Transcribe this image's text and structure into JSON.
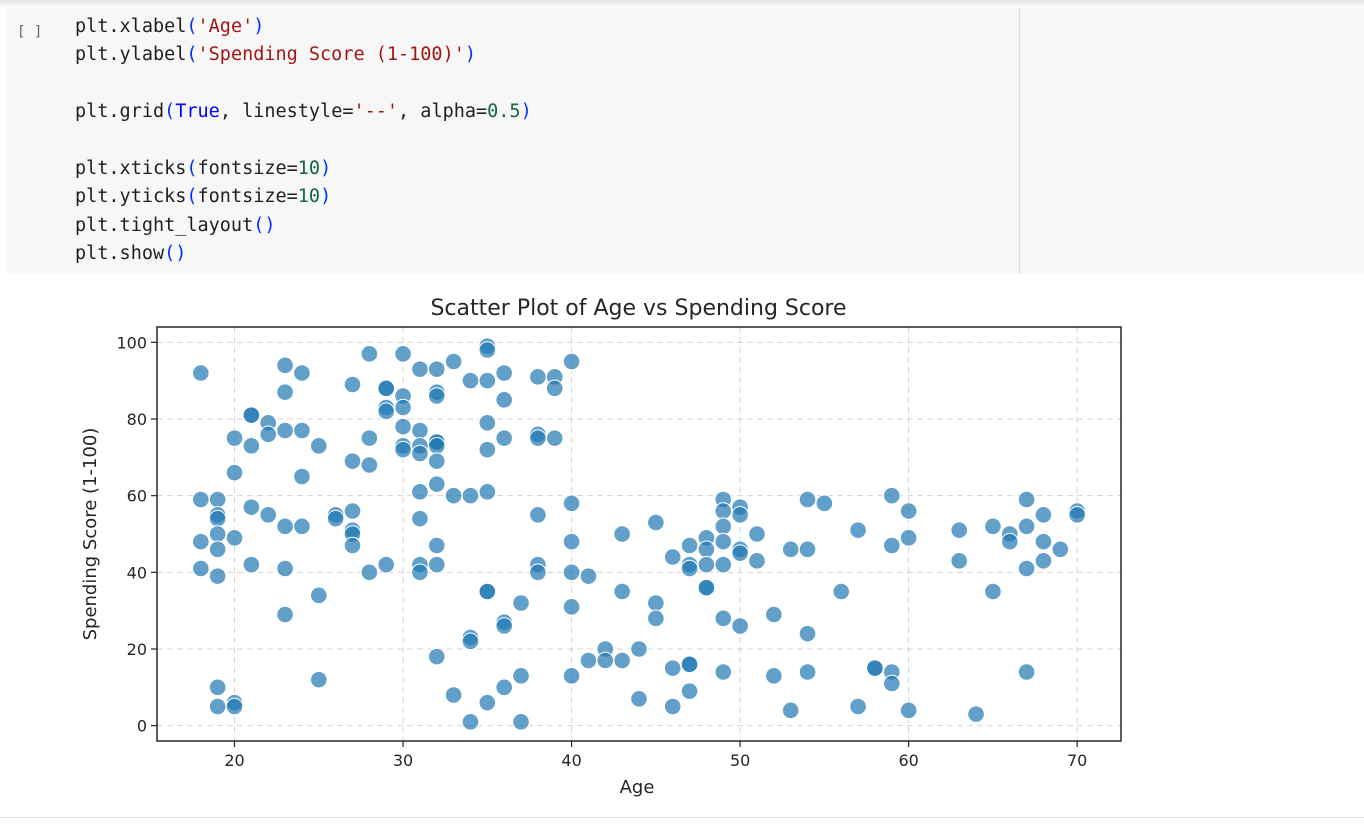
{
  "notebook": {
    "run_indicator": "[ ]",
    "code_lines": [
      [
        {
          "t": "plt.xlabel"
        },
        {
          "t": "(",
          "c": "paren"
        },
        {
          "t": "'Age'",
          "c": "str"
        },
        {
          "t": ")",
          "c": "paren"
        }
      ],
      [
        {
          "t": "plt.ylabel"
        },
        {
          "t": "(",
          "c": "paren"
        },
        {
          "t": "'Spending Score (1-100)'",
          "c": "str"
        },
        {
          "t": ")",
          "c": "paren"
        }
      ],
      [],
      [
        {
          "t": "plt.grid"
        },
        {
          "t": "(",
          "c": "paren"
        },
        {
          "t": "True",
          "c": "kw"
        },
        {
          "t": ", linestyle="
        },
        {
          "t": "'--'",
          "c": "str"
        },
        {
          "t": ", alpha="
        },
        {
          "t": "0.5",
          "c": "num"
        },
        {
          "t": ")",
          "c": "paren"
        }
      ],
      [],
      [
        {
          "t": "plt.xticks"
        },
        {
          "t": "(",
          "c": "paren"
        },
        {
          "t": "fontsize="
        },
        {
          "t": "10",
          "c": "num"
        },
        {
          "t": ")",
          "c": "paren"
        }
      ],
      [
        {
          "t": "plt.yticks"
        },
        {
          "t": "(",
          "c": "paren"
        },
        {
          "t": "fontsize="
        },
        {
          "t": "10",
          "c": "num"
        },
        {
          "t": ")",
          "c": "paren"
        }
      ],
      [
        {
          "t": "plt.tight_layout"
        },
        {
          "t": "()",
          "c": "paren"
        }
      ],
      [
        {
          "t": "plt.show"
        },
        {
          "t": "()",
          "c": "paren"
        }
      ]
    ]
  },
  "colors": {
    "marker": "#1f77b4",
    "marker_edge": "#ffffff",
    "grid": "#b0b0b0",
    "axis": "#262626"
  },
  "chart_data": {
    "type": "scatter",
    "title": "Scatter Plot of Age vs Spending Score",
    "xlabel": "Age",
    "ylabel": "Spending Score (1-100)",
    "xlim": [
      15.4,
      72.6
    ],
    "ylim": [
      -4,
      104
    ],
    "xticks": [
      20,
      30,
      40,
      50,
      60,
      70
    ],
    "yticks": [
      0,
      20,
      40,
      60,
      80,
      100
    ],
    "grid": true,
    "marker_alpha": 0.7,
    "points": [
      [
        18,
        92
      ],
      [
        18,
        59
      ],
      [
        18,
        48
      ],
      [
        18,
        41
      ],
      [
        19,
        59
      ],
      [
        19,
        55
      ],
      [
        19,
        54
      ],
      [
        19,
        50
      ],
      [
        19,
        46
      ],
      [
        19,
        39
      ],
      [
        19,
        10
      ],
      [
        19,
        5
      ],
      [
        20,
        75
      ],
      [
        20,
        66
      ],
      [
        20,
        49
      ],
      [
        20,
        6
      ],
      [
        20,
        5
      ],
      [
        21,
        81
      ],
      [
        21,
        81
      ],
      [
        21,
        73
      ],
      [
        21,
        57
      ],
      [
        21,
        42
      ],
      [
        22,
        79
      ],
      [
        22,
        76
      ],
      [
        22,
        55
      ],
      [
        23,
        94
      ],
      [
        23,
        87
      ],
      [
        23,
        77
      ],
      [
        23,
        52
      ],
      [
        23,
        41
      ],
      [
        23,
        29
      ],
      [
        24,
        92
      ],
      [
        24,
        77
      ],
      [
        24,
        65
      ],
      [
        24,
        52
      ],
      [
        25,
        73
      ],
      [
        25,
        34
      ],
      [
        25,
        12
      ],
      [
        26,
        55
      ],
      [
        26,
        54
      ],
      [
        27,
        89
      ],
      [
        27,
        69
      ],
      [
        27,
        56
      ],
      [
        27,
        51
      ],
      [
        27,
        50
      ],
      [
        27,
        47
      ],
      [
        28,
        97
      ],
      [
        28,
        75
      ],
      [
        28,
        68
      ],
      [
        28,
        40
      ],
      [
        29,
        88
      ],
      [
        29,
        88
      ],
      [
        29,
        83
      ],
      [
        29,
        82
      ],
      [
        29,
        42
      ],
      [
        30,
        97
      ],
      [
        30,
        86
      ],
      [
        30,
        83
      ],
      [
        30,
        78
      ],
      [
        30,
        73
      ],
      [
        30,
        72
      ],
      [
        31,
        93
      ],
      [
        31,
        77
      ],
      [
        31,
        73
      ],
      [
        31,
        71
      ],
      [
        31,
        61
      ],
      [
        31,
        54
      ],
      [
        31,
        42
      ],
      [
        31,
        40
      ],
      [
        32,
        93
      ],
      [
        32,
        87
      ],
      [
        32,
        86
      ],
      [
        32,
        74
      ],
      [
        32,
        74
      ],
      [
        32,
        73
      ],
      [
        32,
        69
      ],
      [
        32,
        63
      ],
      [
        32,
        47
      ],
      [
        32,
        42
      ],
      [
        32,
        18
      ],
      [
        33,
        95
      ],
      [
        33,
        60
      ],
      [
        33,
        8
      ],
      [
        34,
        90
      ],
      [
        34,
        60
      ],
      [
        34,
        23
      ],
      [
        34,
        22
      ],
      [
        34,
        1
      ],
      [
        35,
        99
      ],
      [
        35,
        98
      ],
      [
        35,
        90
      ],
      [
        35,
        79
      ],
      [
        35,
        72
      ],
      [
        35,
        61
      ],
      [
        35,
        35
      ],
      [
        35,
        35
      ],
      [
        35,
        6
      ],
      [
        36,
        92
      ],
      [
        36,
        85
      ],
      [
        36,
        75
      ],
      [
        36,
        27
      ],
      [
        36,
        26
      ],
      [
        36,
        10
      ],
      [
        37,
        32
      ],
      [
        37,
        13
      ],
      [
        37,
        1
      ],
      [
        38,
        91
      ],
      [
        38,
        76
      ],
      [
        38,
        75
      ],
      [
        38,
        55
      ],
      [
        38,
        42
      ],
      [
        38,
        40
      ],
      [
        39,
        91
      ],
      [
        39,
        88
      ],
      [
        39,
        75
      ],
      [
        40,
        95
      ],
      [
        40,
        58
      ],
      [
        40,
        48
      ],
      [
        40,
        40
      ],
      [
        40,
        31
      ],
      [
        40,
        13
      ],
      [
        41,
        39
      ],
      [
        41,
        17
      ],
      [
        42,
        20
      ],
      [
        42,
        17
      ],
      [
        43,
        50
      ],
      [
        43,
        35
      ],
      [
        43,
        17
      ],
      [
        44,
        20
      ],
      [
        44,
        7
      ],
      [
        45,
        53
      ],
      [
        45,
        32
      ],
      [
        45,
        28
      ],
      [
        46,
        44
      ],
      [
        46,
        15
      ],
      [
        46,
        5
      ],
      [
        47,
        47
      ],
      [
        47,
        42
      ],
      [
        47,
        41
      ],
      [
        47,
        16
      ],
      [
        47,
        16
      ],
      [
        47,
        9
      ],
      [
        48,
        49
      ],
      [
        48,
        46
      ],
      [
        48,
        42
      ],
      [
        48,
        36
      ],
      [
        48,
        36
      ],
      [
        49,
        59
      ],
      [
        49,
        56
      ],
      [
        49,
        52
      ],
      [
        49,
        48
      ],
      [
        49,
        42
      ],
      [
        49,
        28
      ],
      [
        49,
        14
      ],
      [
        50,
        57
      ],
      [
        50,
        55
      ],
      [
        50,
        46
      ],
      [
        50,
        45
      ],
      [
        50,
        26
      ],
      [
        51,
        50
      ],
      [
        51,
        43
      ],
      [
        52,
        29
      ],
      [
        52,
        13
      ],
      [
        53,
        46
      ],
      [
        53,
        4
      ],
      [
        54,
        59
      ],
      [
        54,
        46
      ],
      [
        54,
        24
      ],
      [
        54,
        14
      ],
      [
        55,
        58
      ],
      [
        56,
        35
      ],
      [
        57,
        51
      ],
      [
        57,
        5
      ],
      [
        58,
        15
      ],
      [
        58,
        15
      ],
      [
        59,
        60
      ],
      [
        59,
        47
      ],
      [
        59,
        14
      ],
      [
        59,
        11
      ],
      [
        60,
        56
      ],
      [
        60,
        49
      ],
      [
        60,
        4
      ],
      [
        63,
        51
      ],
      [
        63,
        43
      ],
      [
        64,
        3
      ],
      [
        65,
        52
      ],
      [
        65,
        35
      ],
      [
        66,
        50
      ],
      [
        66,
        48
      ],
      [
        67,
        59
      ],
      [
        67,
        52
      ],
      [
        67,
        41
      ],
      [
        67,
        14
      ],
      [
        68,
        55
      ],
      [
        68,
        48
      ],
      [
        68,
        43
      ],
      [
        69,
        46
      ],
      [
        70,
        56
      ],
      [
        70,
        55
      ]
    ]
  }
}
